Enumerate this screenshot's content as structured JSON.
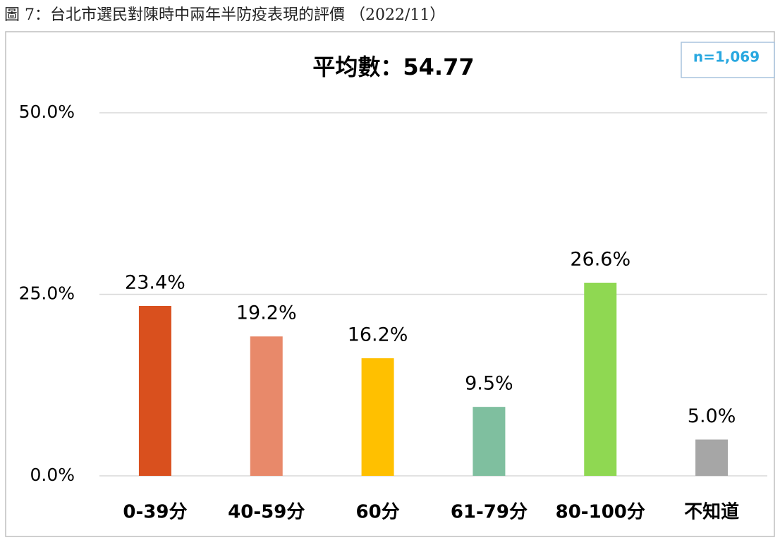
{
  "chart_data": {
    "type": "bar",
    "caption": "圖 7：台北市選民對陳時中兩年半防疫表現的評價 （2022/11）",
    "title": "平均數：54.77",
    "note": "n=1,069",
    "categories": [
      "0-39分",
      "40-59分",
      "60分",
      "61-79分",
      "80-100分",
      "不知道"
    ],
    "values": [
      23.4,
      19.2,
      16.2,
      9.5,
      26.6,
      5.0
    ],
    "value_labels": [
      "23.4%",
      "19.2%",
      "16.2%",
      "9.5%",
      "26.6%",
      "5.0%"
    ],
    "colors": [
      "#d9501e",
      "#e8896a",
      "#ffc000",
      "#7fbf9f",
      "#8fd852",
      "#a6a6a6"
    ],
    "ylim": [
      0,
      50
    ],
    "yticks": [
      {
        "value": 0,
        "label": "0.0%"
      },
      {
        "value": 25,
        "label": "25.0%"
      },
      {
        "value": 50,
        "label": "50.0%"
      }
    ],
    "grid": true
  }
}
